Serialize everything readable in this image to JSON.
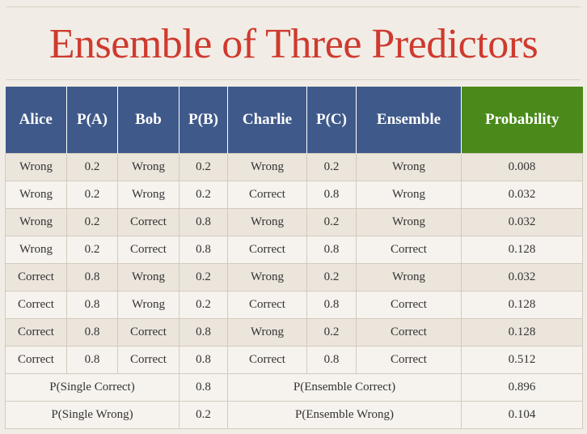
{
  "slide": {
    "title": "Ensemble of Three Predictors"
  },
  "table": {
    "headers": [
      "Alice",
      "P(A)",
      "Bob",
      "P(B)",
      "Charlie",
      "P(C)",
      "Ensemble",
      "Probability"
    ],
    "rows": [
      [
        "Wrong",
        "0.2",
        "Wrong",
        "0.2",
        "Wrong",
        "0.2",
        "Wrong",
        "0.008"
      ],
      [
        "Wrong",
        "0.2",
        "Wrong",
        "0.2",
        "Correct",
        "0.8",
        "Wrong",
        "0.032"
      ],
      [
        "Wrong",
        "0.2",
        "Correct",
        "0.8",
        "Wrong",
        "0.2",
        "Wrong",
        "0.032"
      ],
      [
        "Wrong",
        "0.2",
        "Correct",
        "0.8",
        "Correct",
        "0.8",
        "Correct",
        "0.128"
      ],
      [
        "Correct",
        "0.8",
        "Wrong",
        "0.2",
        "Wrong",
        "0.2",
        "Wrong",
        "0.032"
      ],
      [
        "Correct",
        "0.8",
        "Wrong",
        "0.2",
        "Correct",
        "0.8",
        "Correct",
        "0.128"
      ],
      [
        "Correct",
        "0.8",
        "Correct",
        "0.8",
        "Wrong",
        "0.2",
        "Correct",
        "0.128"
      ],
      [
        "Correct",
        "0.8",
        "Correct",
        "0.8",
        "Correct",
        "0.8",
        "Correct",
        "0.512"
      ]
    ],
    "summary": [
      {
        "single_label": "P(Single Correct)",
        "single_value": "0.8",
        "ensemble_label": "P(Ensemble Correct)",
        "ensemble_value": "0.896"
      },
      {
        "single_label": "P(Single Wrong)",
        "single_value": "0.2",
        "ensemble_label": "P(Ensemble Wrong)",
        "ensemble_value": "0.104"
      }
    ]
  },
  "colors": {
    "title": "#cf3a2e",
    "header_blue": "#3f5a8a",
    "header_green": "#4a8a1a",
    "background": "#f1ede6"
  }
}
